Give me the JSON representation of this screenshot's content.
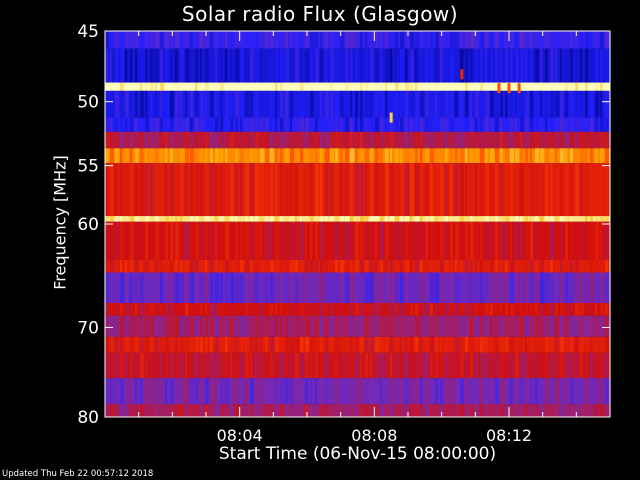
{
  "title": "Solar radio Flux (Glasgow)",
  "footer": "Updated Thu Feb 22 00:57:12 2018",
  "chart_data": {
    "type": "heatmap",
    "title": "Solar radio Flux (Glasgow)",
    "xlabel": "Start Time (06-Nov-15 08:00:00)",
    "ylabel": "Frequency [MHz]",
    "xlim_minutes": [
      0,
      15
    ],
    "ylim": [
      80,
      45
    ],
    "y_scale": "log",
    "x_ticks": [
      {
        "minute": 4,
        "label": "08:04"
      },
      {
        "minute": 8,
        "label": "08:08"
      },
      {
        "minute": 12,
        "label": "08:12"
      }
    ],
    "y_ticks": [
      45,
      50,
      55,
      60,
      70,
      80
    ],
    "colormap": [
      "#00007a",
      "#2020ff",
      "#7a2ab0",
      "#d01010",
      "#ff3a00",
      "#ffb000",
      "#ffffc0"
    ],
    "bands": [
      {
        "from": 45.0,
        "to": 46.2,
        "level": 0.2
      },
      {
        "from": 46.2,
        "to": 48.6,
        "level": 0.12
      },
      {
        "from": 48.6,
        "to": 49.2,
        "level": 1.0
      },
      {
        "from": 49.2,
        "to": 51.2,
        "level": 0.14
      },
      {
        "from": 51.2,
        "to": 52.3,
        "level": 0.18
      },
      {
        "from": 52.3,
        "to": 53.6,
        "level": 0.45
      },
      {
        "from": 53.6,
        "to": 54.8,
        "level": 0.78
      },
      {
        "from": 54.8,
        "to": 59.3,
        "level": 0.55
      },
      {
        "from": 59.3,
        "to": 59.8,
        "level": 0.95
      },
      {
        "from": 59.8,
        "to": 63.3,
        "level": 0.5
      },
      {
        "from": 63.3,
        "to": 64.5,
        "level": 0.55
      },
      {
        "from": 64.5,
        "to": 67.5,
        "level": 0.3
      },
      {
        "from": 67.5,
        "to": 68.8,
        "level": 0.5
      },
      {
        "from": 68.8,
        "to": 71.0,
        "level": 0.4
      },
      {
        "from": 71.0,
        "to": 72.7,
        "level": 0.55
      },
      {
        "from": 72.7,
        "to": 75.5,
        "level": 0.48
      },
      {
        "from": 75.5,
        "to": 78.5,
        "level": 0.32
      },
      {
        "from": 78.5,
        "to": 80.0,
        "level": 0.42
      }
    ],
    "bursts": [
      {
        "minute": 8.5,
        "freq": 51.2,
        "level": 0.9
      },
      {
        "minute": 10.6,
        "freq": 48.0,
        "level": 0.6
      },
      {
        "minute": 11.7,
        "freq": 49.0,
        "level": 0.7
      },
      {
        "minute": 12.0,
        "freq": 49.0,
        "level": 0.7
      },
      {
        "minute": 12.3,
        "freq": 49.0,
        "level": 0.7
      }
    ]
  }
}
